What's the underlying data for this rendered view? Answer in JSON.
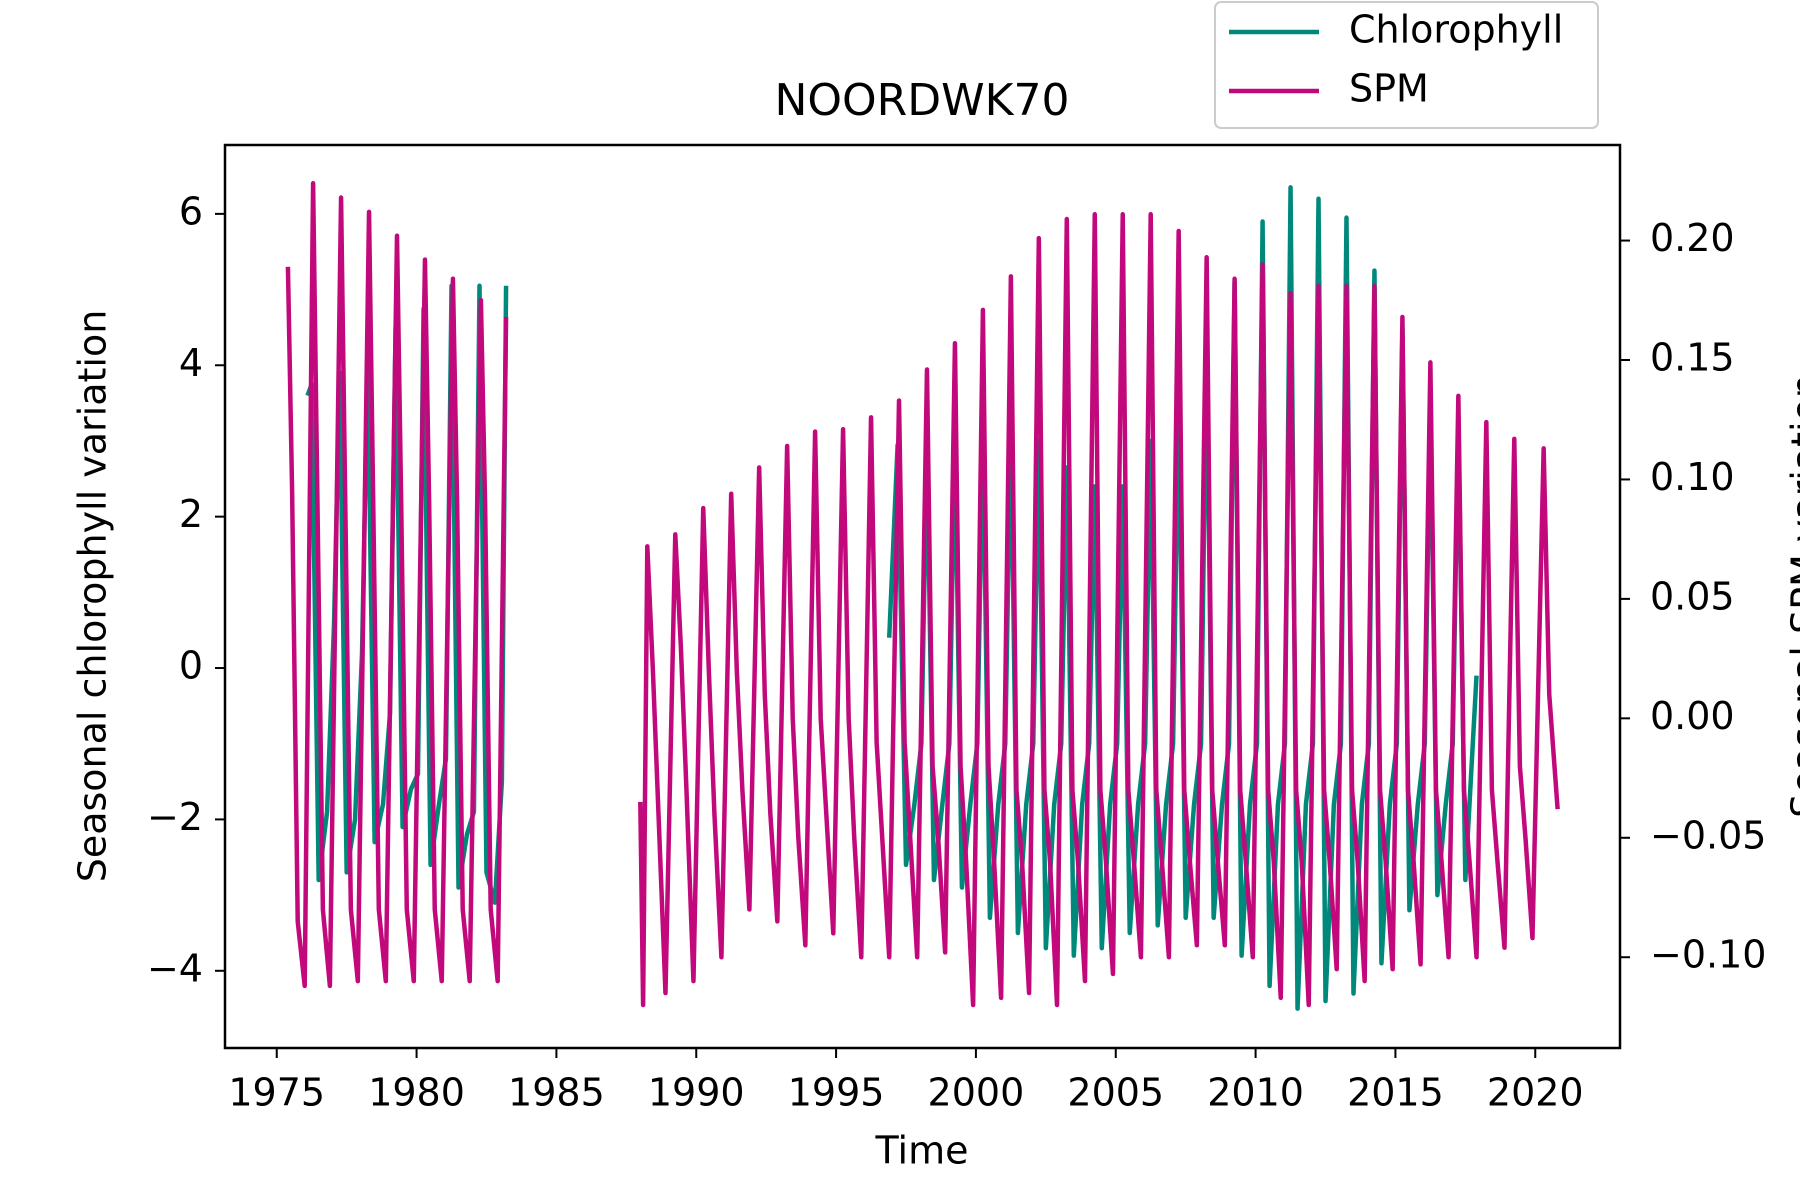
{
  "chart_data": {
    "type": "line",
    "title": "NOORDWK70",
    "xlabel": "Time",
    "ylabel": "Seasonal chlorophyll variation",
    "y2label": "Seasonal SPM variation",
    "xlim": [
      1973.15,
      2023.03
    ],
    "ylim": [
      -5.02,
      6.91
    ],
    "y2lim": [
      -0.138,
      0.24
    ],
    "xticks": [
      1975,
      1980,
      1985,
      1990,
      1995,
      2000,
      2005,
      2010,
      2015,
      2020
    ],
    "yticks": [
      {
        "value": -4,
        "label": "−4"
      },
      {
        "value": -2,
        "label": "−2"
      },
      0,
      2,
      4,
      6
    ],
    "y2ticks": [
      {
        "value": -0.1,
        "label": "−0.10"
      },
      {
        "value": -0.05,
        "label": "−0.05"
      },
      {
        "value": 0,
        "label": "0.00"
      },
      {
        "value": 0.05,
        "label": "0.05"
      },
      {
        "value": 0.1,
        "label": "0.10"
      },
      {
        "value": 0.15,
        "label": "0.15"
      },
      {
        "value": 0.2,
        "label": "0.20"
      }
    ],
    "legend": "upper right",
    "grid": false,
    "series": [
      {
        "name": "Chlorophyll",
        "color": "#00897b",
        "axis": "y",
        "x": [
          1976.1,
          1976.25,
          1976.5,
          1976.8,
          1977.05,
          1977.25,
          1977.5,
          1977.8,
          1978.05,
          1978.25,
          1978.5,
          1978.8,
          1979.05,
          1979.25,
          1979.5,
          1979.8,
          1980.05,
          1980.25,
          1980.5,
          1980.8,
          1981.05,
          1981.25,
          1981.5,
          1981.8,
          1982.05,
          1982.25,
          1982.5,
          1982.8,
          1983.05,
          1983.2,
          1990,
          1996.9,
          1997.2,
          1997.5,
          1997.8,
          1998.05,
          1998.25,
          1998.5,
          1998.8,
          1999.05,
          1999.25,
          1999.5,
          1999.8,
          2000.05,
          2000.25,
          2000.5,
          2000.8,
          2001.05,
          2001.25,
          2001.5,
          2001.8,
          2002.05,
          2002.25,
          2002.5,
          2002.8,
          2003.05,
          2003.25,
          2003.5,
          2003.8,
          2004.05,
          2004.25,
          2004.5,
          2004.8,
          2005.05,
          2005.25,
          2005.5,
          2005.8,
          2006.05,
          2006.25,
          2006.5,
          2006.8,
          2007.05,
          2007.25,
          2007.5,
          2007.8,
          2008.05,
          2008.25,
          2008.5,
          2008.8,
          2009.05,
          2009.25,
          2009.5,
          2009.8,
          2010.05,
          2010.25,
          2010.5,
          2010.8,
          2011.05,
          2011.25,
          2011.5,
          2011.8,
          2012.05,
          2012.25,
          2012.5,
          2012.8,
          2013.05,
          2013.25,
          2013.5,
          2013.8,
          2014.05,
          2014.25,
          2014.5,
          2014.8,
          2015.05,
          2015.25,
          2015.5,
          2015.8,
          2016.05,
          2016.25,
          2016.5,
          2016.8,
          2017.05,
          2017.25,
          2017.5,
          2017.9
        ],
        "values": [
          3.6,
          3.75,
          -2.8,
          -1.9,
          0.6,
          3.9,
          -2.7,
          -2.0,
          0.2,
          4.05,
          -2.3,
          -1.8,
          -0.6,
          4.5,
          -2.1,
          -1.6,
          -1.4,
          4.75,
          -2.6,
          -1.8,
          -1.2,
          5.05,
          -2.9,
          -2.2,
          -1.9,
          5.05,
          -2.7,
          -3.1,
          -1.5,
          5.05,
          null,
          0.4,
          2.95,
          -2.6,
          -1.8,
          -1.0,
          2.95,
          -2.8,
          -1.8,
          -1.0,
          3.05,
          -2.9,
          -1.8,
          -1.0,
          3.15,
          -3.3,
          -1.8,
          -1.0,
          3.25,
          -3.5,
          -1.8,
          -1.0,
          3.0,
          -3.7,
          -1.8,
          -1.0,
          2.65,
          -3.8,
          -1.8,
          -1.0,
          2.4,
          -3.7,
          -1.8,
          -1.0,
          2.4,
          -3.5,
          -1.8,
          -1.0,
          3.0,
          -3.4,
          -1.8,
          -1.0,
          3.6,
          -3.3,
          -1.8,
          -1.0,
          4.3,
          -3.3,
          -1.8,
          -1.0,
          5.1,
          -3.8,
          -1.8,
          -1.0,
          5.9,
          -4.2,
          -1.8,
          -1.0,
          6.35,
          -4.5,
          -1.8,
          -1.0,
          6.2,
          -4.4,
          -1.8,
          -1.0,
          5.95,
          -4.3,
          -1.8,
          -1.0,
          5.25,
          -3.9,
          -1.8,
          -1.0,
          4.5,
          -3.2,
          -1.8,
          -1.0,
          3.55,
          -3.0,
          -1.8,
          -1.0,
          3.3,
          -2.8,
          -0.1
        ]
      },
      {
        "name": "SPM",
        "color": "#c2097c",
        "axis": "y2",
        "x": [
          1975.4,
          1975.55,
          1975.75,
          1976.0,
          1976.3,
          1976.45,
          1976.65,
          1976.9,
          1977.3,
          1977.45,
          1977.65,
          1977.9,
          1978.3,
          1978.45,
          1978.65,
          1978.9,
          1979.3,
          1979.45,
          1979.65,
          1979.9,
          1980.3,
          1980.45,
          1980.65,
          1980.9,
          1981.3,
          1981.45,
          1981.65,
          1981.9,
          1982.3,
          1982.45,
          1982.65,
          1982.9,
          1983.2,
          1985,
          1988.0,
          1988.1,
          1988.25,
          1988.45,
          1988.65,
          1988.9,
          1989.25,
          1989.45,
          1989.65,
          1989.9,
          1990.25,
          1990.45,
          1990.65,
          1990.9,
          1991.25,
          1991.45,
          1991.65,
          1991.9,
          1992.25,
          1992.45,
          1992.65,
          1992.9,
          1993.25,
          1993.45,
          1993.65,
          1993.9,
          1994.25,
          1994.45,
          1994.65,
          1994.9,
          1995.25,
          1995.45,
          1995.65,
          1995.9,
          1996.25,
          1996.45,
          1996.65,
          1996.9,
          1997.25,
          1997.45,
          1997.65,
          1997.9,
          1998.25,
          1998.45,
          1998.65,
          1998.9,
          1999.25,
          1999.45,
          1999.65,
          1999.9,
          2000.25,
          2000.45,
          2000.65,
          2000.9,
          2001.25,
          2001.45,
          2001.65,
          2001.9,
          2002.25,
          2002.45,
          2002.65,
          2002.9,
          2003.25,
          2003.45,
          2003.65,
          2003.9,
          2004.25,
          2004.45,
          2004.65,
          2004.9,
          2005.25,
          2005.45,
          2005.65,
          2005.9,
          2006.25,
          2006.45,
          2006.65,
          2006.9,
          2007.25,
          2007.45,
          2007.65,
          2007.9,
          2008.25,
          2008.45,
          2008.65,
          2008.9,
          2009.25,
          2009.45,
          2009.65,
          2009.9,
          2010.25,
          2010.45,
          2010.65,
          2010.9,
          2011.25,
          2011.45,
          2011.65,
          2011.9,
          2012.25,
          2012.45,
          2012.65,
          2012.9,
          2013.25,
          2013.45,
          2013.65,
          2013.9,
          2014.25,
          2014.45,
          2014.65,
          2014.9,
          2015.25,
          2015.45,
          2015.65,
          2015.9,
          2016.25,
          2016.45,
          2016.65,
          2016.9,
          2017.25,
          2017.45,
          2017.65,
          2017.9,
          2018.25,
          2018.45,
          2018.65,
          2018.9,
          2019.25,
          2019.45,
          2019.65,
          2019.9,
          2020.3,
          2020.5,
          2020.8
        ],
        "values": [
          0.189,
          0.095,
          -0.085,
          -0.112,
          0.224,
          0.095,
          -0.08,
          -0.112,
          0.218,
          0.09,
          -0.08,
          -0.11,
          0.212,
          0.09,
          -0.08,
          -0.11,
          0.202,
          0.09,
          -0.08,
          -0.11,
          0.192,
          0.09,
          -0.08,
          -0.11,
          0.184,
          0.09,
          -0.08,
          -0.11,
          0.175,
          0.09,
          -0.08,
          -0.11,
          0.168,
          null,
          -0.035,
          -0.12,
          0.072,
          0.02,
          -0.04,
          -0.115,
          0.077,
          0.03,
          -0.03,
          -0.11,
          0.088,
          0.02,
          -0.04,
          -0.1,
          0.094,
          0.02,
          -0.03,
          -0.08,
          0.105,
          0.01,
          -0.04,
          -0.085,
          0.114,
          0.0,
          -0.05,
          -0.095,
          0.12,
          0.0,
          -0.04,
          -0.09,
          0.121,
          0.0,
          -0.05,
          -0.1,
          0.126,
          -0.01,
          -0.05,
          -0.1,
          0.133,
          -0.01,
          -0.05,
          -0.1,
          0.146,
          -0.02,
          -0.05,
          -0.098,
          0.157,
          -0.02,
          -0.06,
          -0.12,
          0.171,
          -0.02,
          -0.06,
          -0.117,
          0.185,
          -0.03,
          -0.06,
          -0.115,
          0.201,
          -0.03,
          -0.06,
          -0.12,
          0.209,
          -0.03,
          -0.06,
          -0.11,
          0.211,
          -0.03,
          -0.06,
          -0.107,
          0.211,
          -0.03,
          -0.06,
          -0.1,
          0.211,
          -0.03,
          -0.06,
          -0.1,
          0.204,
          -0.03,
          -0.06,
          -0.095,
          0.193,
          -0.03,
          -0.06,
          -0.095,
          0.184,
          -0.03,
          -0.06,
          -0.1,
          0.19,
          -0.03,
          -0.06,
          -0.117,
          0.178,
          -0.03,
          -0.06,
          -0.12,
          0.181,
          -0.03,
          -0.06,
          -0.105,
          0.181,
          -0.03,
          -0.06,
          -0.11,
          0.181,
          -0.03,
          -0.06,
          -0.105,
          0.168,
          -0.03,
          -0.06,
          -0.103,
          0.149,
          -0.03,
          -0.06,
          -0.1,
          0.135,
          -0.03,
          -0.06,
          -0.1,
          0.124,
          -0.03,
          -0.06,
          -0.096,
          0.117,
          -0.02,
          -0.05,
          -0.092,
          0.113,
          0.01,
          -0.038
        ]
      }
    ]
  }
}
